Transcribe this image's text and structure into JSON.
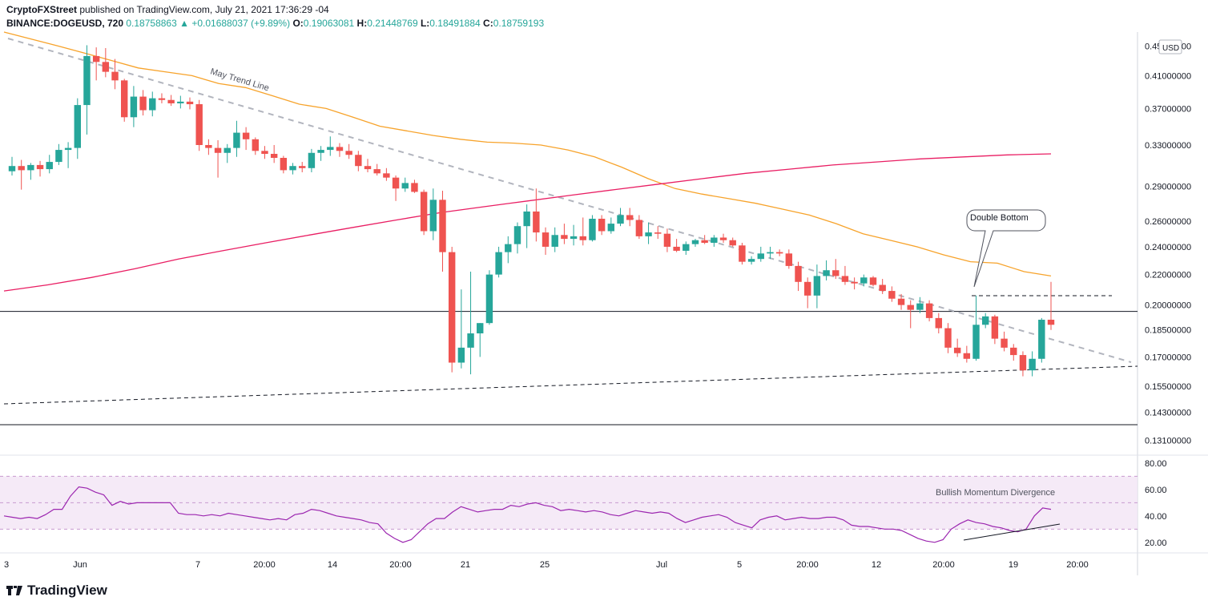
{
  "header": {
    "publisher": "CryptoFXStreet",
    "published_text": "published on TradingView.com, July 21, 2021 17:36:29 -04",
    "symbol": "BINANCE:DOGEUSD, 720",
    "last": "0.18758863",
    "change": "▲ +0.01688037 (+9.89%)",
    "o_label": "O:",
    "o": "0.19063081",
    "h_label": "H:",
    "h": "0.21448769",
    "l_label": "L:",
    "l": "0.18491884",
    "c_label": "C:",
    "c": "0.18759193"
  },
  "footer": {
    "brand": "TradingView"
  },
  "colors": {
    "up": "#26a69a",
    "down": "#ef5350",
    "sma_fast": "#f7a32b",
    "sma_slow": "#e91e63",
    "rsi": "#9c27b0",
    "rsi_band": "#e1bee7"
  },
  "chart_data": [
    {
      "type": "candlestick",
      "currency": "USD",
      "y_tick_labels": [
        "0.45000000",
        "0.41000000",
        "0.37000000",
        "0.33000000",
        "0.29000000",
        "0.26000000",
        "0.24000000",
        "0.22000000",
        "0.20000000",
        "0.18500000",
        "0.17000000",
        "0.15500000",
        "0.14300000",
        "0.13100000"
      ],
      "y_ticks": [
        0.45,
        0.41,
        0.37,
        0.33,
        0.29,
        0.26,
        0.24,
        0.22,
        0.2,
        0.185,
        0.17,
        0.155,
        0.143,
        0.131
      ],
      "ylim": [
        0.125,
        0.47
      ],
      "scale": "log",
      "x_tick_labels": [
        "3",
        "Jun",
        "7",
        "20:00",
        "14",
        "20:00",
        "21",
        "25",
        "Jul",
        "5",
        "20:00",
        "12",
        "20:00",
        "19",
        "20:00"
      ],
      "bar_interval": "12h",
      "candles": [
        {
          "o": 0.304,
          "h": 0.318,
          "l": 0.3,
          "c": 0.309
        },
        {
          "o": 0.309,
          "h": 0.315,
          "l": 0.287,
          "c": 0.305
        },
        {
          "o": 0.305,
          "h": 0.312,
          "l": 0.296,
          "c": 0.31
        },
        {
          "o": 0.31,
          "h": 0.314,
          "l": 0.299,
          "c": 0.306
        },
        {
          "o": 0.306,
          "h": 0.32,
          "l": 0.302,
          "c": 0.313
        },
        {
          "o": 0.313,
          "h": 0.331,
          "l": 0.31,
          "c": 0.325
        },
        {
          "o": 0.325,
          "h": 0.333,
          "l": 0.307,
          "c": 0.327
        },
        {
          "o": 0.327,
          "h": 0.382,
          "l": 0.316,
          "c": 0.374
        },
        {
          "o": 0.374,
          "h": 0.451,
          "l": 0.341,
          "c": 0.436
        },
        {
          "o": 0.436,
          "h": 0.448,
          "l": 0.404,
          "c": 0.428
        },
        {
          "o": 0.428,
          "h": 0.447,
          "l": 0.408,
          "c": 0.415
        },
        {
          "o": 0.415,
          "h": 0.432,
          "l": 0.393,
          "c": 0.404
        },
        {
          "o": 0.404,
          "h": 0.406,
          "l": 0.355,
          "c": 0.36
        },
        {
          "o": 0.36,
          "h": 0.397,
          "l": 0.349,
          "c": 0.384
        },
        {
          "o": 0.384,
          "h": 0.392,
          "l": 0.362,
          "c": 0.368
        },
        {
          "o": 0.368,
          "h": 0.39,
          "l": 0.361,
          "c": 0.382
        },
        {
          "o": 0.382,
          "h": 0.388,
          "l": 0.376,
          "c": 0.38
        },
        {
          "o": 0.38,
          "h": 0.386,
          "l": 0.373,
          "c": 0.376
        },
        {
          "o": 0.376,
          "h": 0.385,
          "l": 0.37,
          "c": 0.378
        },
        {
          "o": 0.378,
          "h": 0.383,
          "l": 0.369,
          "c": 0.375
        },
        {
          "o": 0.375,
          "h": 0.38,
          "l": 0.324,
          "c": 0.33
        },
        {
          "o": 0.33,
          "h": 0.336,
          "l": 0.32,
          "c": 0.327
        },
        {
          "o": 0.327,
          "h": 0.335,
          "l": 0.298,
          "c": 0.322
        },
        {
          "o": 0.322,
          "h": 0.331,
          "l": 0.312,
          "c": 0.327
        },
        {
          "o": 0.327,
          "h": 0.356,
          "l": 0.318,
          "c": 0.343
        },
        {
          "o": 0.343,
          "h": 0.349,
          "l": 0.325,
          "c": 0.336
        },
        {
          "o": 0.336,
          "h": 0.338,
          "l": 0.32,
          "c": 0.324
        },
        {
          "o": 0.324,
          "h": 0.329,
          "l": 0.316,
          "c": 0.321
        },
        {
          "o": 0.321,
          "h": 0.33,
          "l": 0.312,
          "c": 0.317
        },
        {
          "o": 0.317,
          "h": 0.319,
          "l": 0.302,
          "c": 0.305
        },
        {
          "o": 0.305,
          "h": 0.312,
          "l": 0.301,
          "c": 0.309
        },
        {
          "o": 0.309,
          "h": 0.313,
          "l": 0.303,
          "c": 0.307
        },
        {
          "o": 0.307,
          "h": 0.326,
          "l": 0.303,
          "c": 0.322
        },
        {
          "o": 0.322,
          "h": 0.329,
          "l": 0.314,
          "c": 0.325
        },
        {
          "o": 0.325,
          "h": 0.339,
          "l": 0.319,
          "c": 0.328
        },
        {
          "o": 0.328,
          "h": 0.332,
          "l": 0.318,
          "c": 0.324
        },
        {
          "o": 0.324,
          "h": 0.331,
          "l": 0.316,
          "c": 0.32
        },
        {
          "o": 0.32,
          "h": 0.324,
          "l": 0.304,
          "c": 0.309
        },
        {
          "o": 0.309,
          "h": 0.316,
          "l": 0.303,
          "c": 0.306
        },
        {
          "o": 0.306,
          "h": 0.311,
          "l": 0.3,
          "c": 0.302
        },
        {
          "o": 0.302,
          "h": 0.307,
          "l": 0.295,
          "c": 0.298
        },
        {
          "o": 0.298,
          "h": 0.3,
          "l": 0.277,
          "c": 0.288
        },
        {
          "o": 0.288,
          "h": 0.298,
          "l": 0.285,
          "c": 0.293
        },
        {
          "o": 0.293,
          "h": 0.296,
          "l": 0.284,
          "c": 0.285
        },
        {
          "o": 0.285,
          "h": 0.287,
          "l": 0.249,
          "c": 0.252
        },
        {
          "o": 0.252,
          "h": 0.288,
          "l": 0.245,
          "c": 0.278
        },
        {
          "o": 0.278,
          "h": 0.286,
          "l": 0.222,
          "c": 0.236
        },
        {
          "o": 0.236,
          "h": 0.24,
          "l": 0.162,
          "c": 0.167
        },
        {
          "o": 0.167,
          "h": 0.21,
          "l": 0.164,
          "c": 0.175
        },
        {
          "o": 0.175,
          "h": 0.222,
          "l": 0.161,
          "c": 0.183
        },
        {
          "o": 0.183,
          "h": 0.189,
          "l": 0.17,
          "c": 0.189
        },
        {
          "o": 0.189,
          "h": 0.223,
          "l": 0.188,
          "c": 0.22
        },
        {
          "o": 0.22,
          "h": 0.24,
          "l": 0.218,
          "c": 0.236
        },
        {
          "o": 0.236,
          "h": 0.248,
          "l": 0.228,
          "c": 0.242
        },
        {
          "o": 0.242,
          "h": 0.259,
          "l": 0.235,
          "c": 0.256
        },
        {
          "o": 0.256,
          "h": 0.274,
          "l": 0.239,
          "c": 0.268
        },
        {
          "o": 0.268,
          "h": 0.288,
          "l": 0.244,
          "c": 0.251
        },
        {
          "o": 0.251,
          "h": 0.255,
          "l": 0.234,
          "c": 0.24
        },
        {
          "o": 0.24,
          "h": 0.255,
          "l": 0.236,
          "c": 0.249
        },
        {
          "o": 0.249,
          "h": 0.258,
          "l": 0.242,
          "c": 0.246
        },
        {
          "o": 0.246,
          "h": 0.257,
          "l": 0.241,
          "c": 0.248
        },
        {
          "o": 0.248,
          "h": 0.263,
          "l": 0.241,
          "c": 0.245
        },
        {
          "o": 0.245,
          "h": 0.265,
          "l": 0.244,
          "c": 0.262
        },
        {
          "o": 0.262,
          "h": 0.265,
          "l": 0.249,
          "c": 0.252
        },
        {
          "o": 0.252,
          "h": 0.263,
          "l": 0.25,
          "c": 0.258
        },
        {
          "o": 0.258,
          "h": 0.271,
          "l": 0.256,
          "c": 0.265
        },
        {
          "o": 0.265,
          "h": 0.271,
          "l": 0.256,
          "c": 0.261
        },
        {
          "o": 0.261,
          "h": 0.265,
          "l": 0.246,
          "c": 0.248
        },
        {
          "o": 0.248,
          "h": 0.259,
          "l": 0.242,
          "c": 0.251
        },
        {
          "o": 0.251,
          "h": 0.256,
          "l": 0.246,
          "c": 0.25
        },
        {
          "o": 0.25,
          "h": 0.254,
          "l": 0.236,
          "c": 0.24
        },
        {
          "o": 0.24,
          "h": 0.246,
          "l": 0.236,
          "c": 0.237
        },
        {
          "o": 0.237,
          "h": 0.244,
          "l": 0.234,
          "c": 0.242
        },
        {
          "o": 0.242,
          "h": 0.246,
          "l": 0.24,
          "c": 0.245
        },
        {
          "o": 0.245,
          "h": 0.249,
          "l": 0.242,
          "c": 0.243
        },
        {
          "o": 0.243,
          "h": 0.249,
          "l": 0.24,
          "c": 0.247
        },
        {
          "o": 0.247,
          "h": 0.25,
          "l": 0.243,
          "c": 0.245
        },
        {
          "o": 0.245,
          "h": 0.247,
          "l": 0.24,
          "c": 0.241
        },
        {
          "o": 0.241,
          "h": 0.243,
          "l": 0.227,
          "c": 0.229
        },
        {
          "o": 0.229,
          "h": 0.233,
          "l": 0.227,
          "c": 0.231
        },
        {
          "o": 0.231,
          "h": 0.24,
          "l": 0.229,
          "c": 0.235
        },
        {
          "o": 0.235,
          "h": 0.24,
          "l": 0.231,
          "c": 0.236
        },
        {
          "o": 0.236,
          "h": 0.238,
          "l": 0.233,
          "c": 0.235
        },
        {
          "o": 0.235,
          "h": 0.238,
          "l": 0.224,
          "c": 0.226
        },
        {
          "o": 0.226,
          "h": 0.229,
          "l": 0.209,
          "c": 0.215
        },
        {
          "o": 0.215,
          "h": 0.218,
          "l": 0.198,
          "c": 0.206
        },
        {
          "o": 0.206,
          "h": 0.227,
          "l": 0.198,
          "c": 0.219
        },
        {
          "o": 0.219,
          "h": 0.23,
          "l": 0.216,
          "c": 0.223
        },
        {
          "o": 0.223,
          "h": 0.231,
          "l": 0.217,
          "c": 0.219
        },
        {
          "o": 0.219,
          "h": 0.226,
          "l": 0.213,
          "c": 0.215
        },
        {
          "o": 0.215,
          "h": 0.218,
          "l": 0.21,
          "c": 0.214
        },
        {
          "o": 0.214,
          "h": 0.22,
          "l": 0.212,
          "c": 0.218
        },
        {
          "o": 0.218,
          "h": 0.219,
          "l": 0.212,
          "c": 0.213
        },
        {
          "o": 0.213,
          "h": 0.217,
          "l": 0.207,
          "c": 0.209
        },
        {
          "o": 0.209,
          "h": 0.212,
          "l": 0.202,
          "c": 0.204
        },
        {
          "o": 0.204,
          "h": 0.207,
          "l": 0.197,
          "c": 0.2
        },
        {
          "o": 0.2,
          "h": 0.203,
          "l": 0.186,
          "c": 0.197
        },
        {
          "o": 0.197,
          "h": 0.205,
          "l": 0.195,
          "c": 0.201
        },
        {
          "o": 0.201,
          "h": 0.203,
          "l": 0.19,
          "c": 0.192
        },
        {
          "o": 0.192,
          "h": 0.195,
          "l": 0.183,
          "c": 0.186
        },
        {
          "o": 0.186,
          "h": 0.189,
          "l": 0.172,
          "c": 0.175
        },
        {
          "o": 0.175,
          "h": 0.18,
          "l": 0.17,
          "c": 0.172
        },
        {
          "o": 0.172,
          "h": 0.176,
          "l": 0.167,
          "c": 0.169
        },
        {
          "o": 0.169,
          "h": 0.206,
          "l": 0.168,
          "c": 0.188
        },
        {
          "o": 0.188,
          "h": 0.195,
          "l": 0.186,
          "c": 0.193
        },
        {
          "o": 0.193,
          "h": 0.194,
          "l": 0.177,
          "c": 0.18
        },
        {
          "o": 0.18,
          "h": 0.184,
          "l": 0.173,
          "c": 0.175
        },
        {
          "o": 0.175,
          "h": 0.177,
          "l": 0.168,
          "c": 0.171
        },
        {
          "o": 0.171,
          "h": 0.173,
          "l": 0.16,
          "c": 0.163
        },
        {
          "o": 0.163,
          "h": 0.173,
          "l": 0.16,
          "c": 0.169
        },
        {
          "o": 0.169,
          "h": 0.192,
          "l": 0.167,
          "c": 0.191
        },
        {
          "o": 0.191,
          "h": 0.215,
          "l": 0.185,
          "c": 0.188
        }
      ],
      "sma_fast": [
        0.47,
        0.46,
        0.45,
        0.44,
        0.43,
        0.42,
        0.415,
        0.41,
        0.4,
        0.395,
        0.385,
        0.375,
        0.37,
        0.36,
        0.35,
        0.345,
        0.34,
        0.336,
        0.333,
        0.332,
        0.33,
        0.325,
        0.318,
        0.308,
        0.297,
        0.288,
        0.283,
        0.279,
        0.275,
        0.27,
        0.265,
        0.258,
        0.25,
        0.245,
        0.24,
        0.234,
        0.229,
        0.228,
        0.222,
        0.219
      ],
      "sma_slow": [
        0.209,
        0.213,
        0.218,
        0.224,
        0.231,
        0.237,
        0.243,
        0.249,
        0.255,
        0.261,
        0.267,
        0.272,
        0.277,
        0.282,
        0.287,
        0.292,
        0.297,
        0.302,
        0.306,
        0.31,
        0.313,
        0.316,
        0.318,
        0.32,
        0.321
      ],
      "price_line": 0.196,
      "annotations": [
        {
          "text": "May Trend Line"
        },
        {
          "text": "Double Bottom"
        }
      ]
    },
    {
      "type": "line",
      "name": "RSI",
      "y_tick_labels": [
        "80.00",
        "60.00",
        "40.00",
        "20.00"
      ],
      "y_ticks": [
        80,
        60,
        40,
        20
      ],
      "ylim": [
        12,
        86
      ],
      "band": [
        30,
        70
      ],
      "midline": 50,
      "values": [
        40,
        39,
        38,
        39,
        38,
        41,
        45,
        45,
        55,
        62,
        61,
        58,
        56,
        48,
        51,
        49,
        50,
        50,
        50,
        50,
        50,
        42,
        41,
        41,
        40,
        41,
        40,
        42,
        41,
        40,
        39,
        38,
        37,
        38,
        37,
        41,
        42,
        45,
        44,
        42,
        40,
        39,
        38,
        37,
        35,
        34,
        27,
        23,
        20,
        22,
        28,
        34,
        38,
        38,
        43,
        47,
        45,
        43,
        44,
        45,
        45,
        48,
        47,
        49,
        50,
        48,
        47,
        44,
        45,
        44,
        43,
        44,
        43,
        41,
        40,
        42,
        44,
        43,
        42,
        43,
        42,
        38,
        35,
        37,
        39,
        40,
        41,
        39,
        35,
        33,
        31,
        37,
        39,
        40,
        37,
        38,
        39,
        38,
        38,
        39,
        39,
        37,
        33,
        32,
        32,
        31,
        30,
        30,
        29,
        26,
        23,
        21,
        20,
        22,
        30,
        34,
        37,
        35,
        34,
        32,
        31,
        29,
        28,
        30,
        40,
        46,
        45
      ],
      "annotations": [
        {
          "text": "Bullish Momentum Divergence"
        }
      ]
    }
  ]
}
